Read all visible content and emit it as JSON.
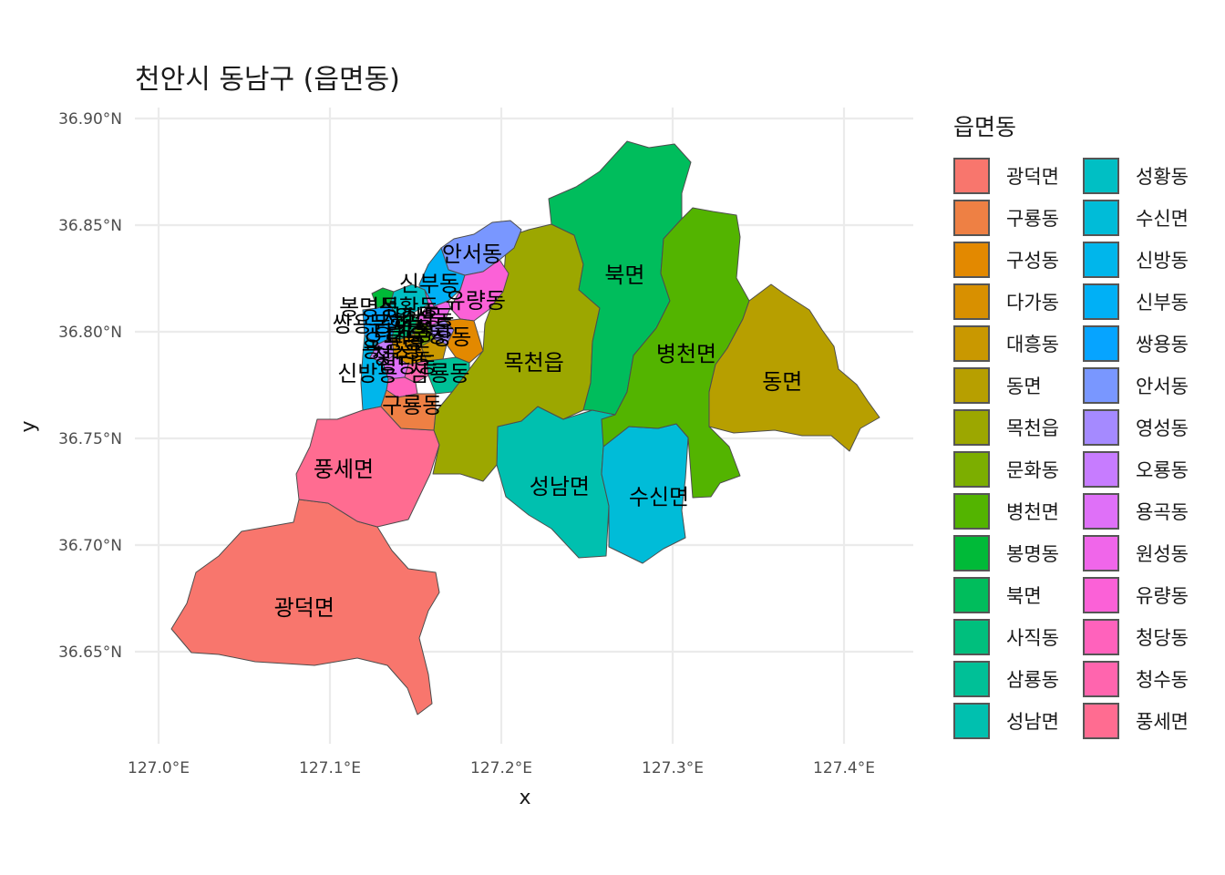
{
  "chart_data": {
    "type": "map",
    "title": "천안시 동남구 (읍면동)",
    "xlabel": "x",
    "ylabel": "y",
    "x_ticks": [
      "127.0°E",
      "127.1°E",
      "127.2°E",
      "127.3°E",
      "127.4°E"
    ],
    "y_ticks": [
      "36.90°N",
      "36.85°N",
      "36.80°N",
      "36.75°N",
      "36.70°N",
      "36.65°N"
    ],
    "legend_title": "읍면동",
    "legend_placement": "right",
    "grid": true,
    "legend": [
      {
        "name": "광덕면",
        "color": "#F8766D"
      },
      {
        "name": "구룡동",
        "color": "#EE8044"
      },
      {
        "name": "구성동",
        "color": "#E38900"
      },
      {
        "name": "다가동",
        "color": "#D89000"
      },
      {
        "name": "대흥동",
        "color": "#C99800"
      },
      {
        "name": "동면",
        "color": "#B79F00"
      },
      {
        "name": "목천읍",
        "color": "#9CA700"
      },
      {
        "name": "문화동",
        "color": "#7CAE00"
      },
      {
        "name": "병천면",
        "color": "#53B400"
      },
      {
        "name": "봉명동",
        "color": "#00BA38"
      },
      {
        "name": "북면",
        "color": "#00BD5C"
      },
      {
        "name": "사직동",
        "color": "#00BF7D"
      },
      {
        "name": "삼룡동",
        "color": "#00C097"
      },
      {
        "name": "성남면",
        "color": "#00C0AF"
      },
      {
        "name": "성황동",
        "color": "#00BFC4"
      },
      {
        "name": "수신면",
        "color": "#00BCD8"
      },
      {
        "name": "신방동",
        "color": "#00B6EB"
      },
      {
        "name": "신부동",
        "color": "#00B0F6"
      },
      {
        "name": "쌍용동",
        "color": "#06A4FF"
      },
      {
        "name": "안서동",
        "color": "#7997FF"
      },
      {
        "name": "영성동",
        "color": "#A58AFF"
      },
      {
        "name": "오룡동",
        "color": "#C77CFF"
      },
      {
        "name": "용곡동",
        "color": "#DF70F8"
      },
      {
        "name": "원성동",
        "color": "#F066EA"
      },
      {
        "name": "유량동",
        "color": "#FB61D7"
      },
      {
        "name": "청당동",
        "color": "#FF62BC"
      },
      {
        "name": "청수동",
        "color": "#FF65AE"
      },
      {
        "name": "풍세면",
        "color": "#FF6C91"
      }
    ],
    "map_labels": [
      {
        "text": "광덕면",
        "lon": 127.085,
        "lat": 36.67
      },
      {
        "text": "풍세면",
        "lon": 127.108,
        "lat": 36.735
      },
      {
        "text": "성남면",
        "lon": 127.234,
        "lat": 36.727
      },
      {
        "text": "수신면",
        "lon": 127.292,
        "lat": 36.722
      },
      {
        "text": "목천읍",
        "lon": 127.219,
        "lat": 36.785
      },
      {
        "text": "북면",
        "lon": 127.272,
        "lat": 36.826
      },
      {
        "text": "병천면",
        "lon": 127.308,
        "lat": 36.789
      },
      {
        "text": "동면",
        "lon": 127.364,
        "lat": 36.776
      },
      {
        "text": "안서동",
        "lon": 127.183,
        "lat": 36.836
      },
      {
        "text": "신부동",
        "lon": 127.158,
        "lat": 36.822
      },
      {
        "text": "유량동",
        "lon": 127.185,
        "lat": 36.814
      },
      {
        "text": "구룡동",
        "lon": 127.148,
        "lat": 36.765
      },
      {
        "text": "신방동",
        "lon": 127.122,
        "lat": 36.78
      },
      {
        "text": "삼룡동",
        "lon": 127.164,
        "lat": 36.78
      },
      {
        "text": "성황동",
        "lon": 127.146,
        "lat": 36.811
      },
      {
        "text": "원성동",
        "lon": 127.155,
        "lat": 36.806
      },
      {
        "text": "봉명동",
        "lon": 127.123,
        "lat": 36.811
      },
      {
        "text": "쌍용동",
        "lon": 127.119,
        "lat": 36.803
      },
      {
        "text": "다가동",
        "lon": 127.143,
        "lat": 36.799
      },
      {
        "text": "대흥동",
        "lon": 127.151,
        "lat": 36.798
      },
      {
        "text": "사직동",
        "lon": 127.148,
        "lat": 36.806
      },
      {
        "text": "문화동",
        "lon": 127.14,
        "lat": 36.803
      },
      {
        "text": "영성동",
        "lon": 127.155,
        "lat": 36.801
      },
      {
        "text": "오룡동",
        "lon": 127.137,
        "lat": 36.795
      },
      {
        "text": "청당동",
        "lon": 127.145,
        "lat": 36.784
      },
      {
        "text": "청수동",
        "lon": 127.142,
        "lat": 36.788
      },
      {
        "text": "용곡동",
        "lon": 127.136,
        "lat": 36.791
      },
      {
        "text": "구성동",
        "lon": 127.165,
        "lat": 36.797
      }
    ]
  }
}
